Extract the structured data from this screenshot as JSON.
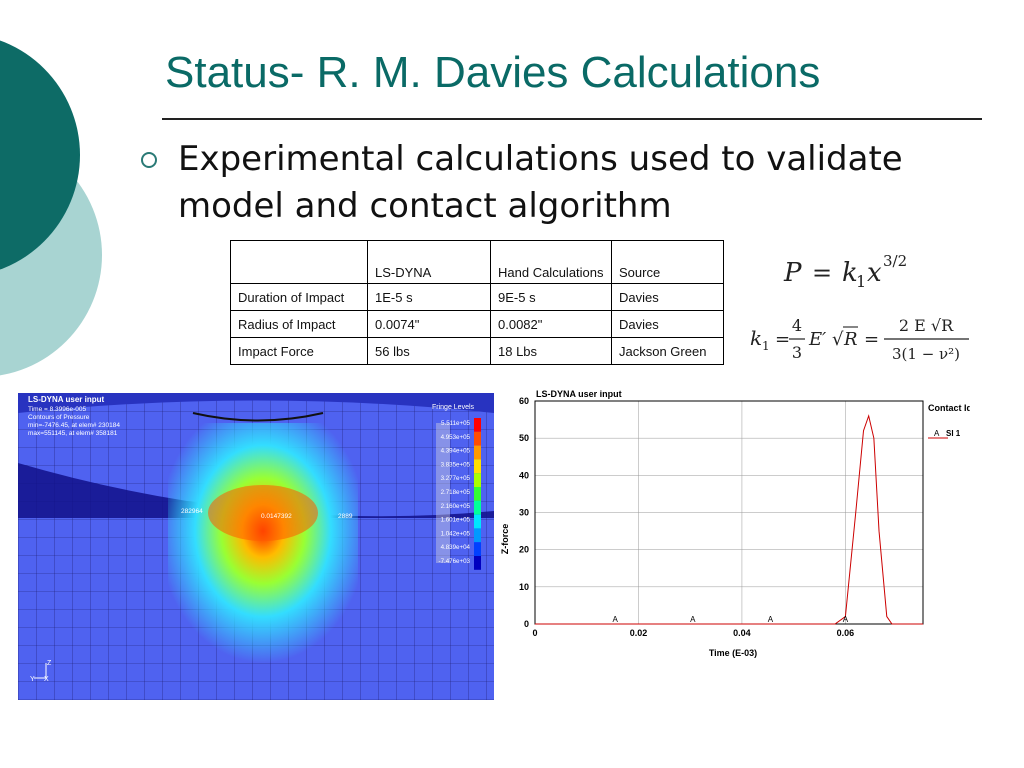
{
  "slide": {
    "title": "Status- R. M. Davies Calculations",
    "bullet": "Experimental calculations used to validate model and contact algorithm"
  },
  "table": {
    "headers": [
      "",
      "LS-DYNA",
      "Hand Calculations",
      "Source"
    ],
    "rows": [
      [
        "Duration of Impact",
        "1E-5 s",
        "9E-5 s",
        "Davies"
      ],
      [
        "Radius of Impact",
        "0.0074\"",
        "0.0082\"",
        "Davies"
      ],
      [
        "Impact Force",
        "56 lbs",
        "18 Lbs",
        "Jackson Green"
      ]
    ]
  },
  "formulas": {
    "force": {
      "P": "P",
      "eq": "=",
      "k": "k",
      "sub": "1",
      "x": "x",
      "exp": "3/2"
    },
    "k1": {
      "k": "k",
      "sub": "1",
      "eq1": "=",
      "frac1_num": "4",
      "frac1_den": "3",
      "e_prime": "E′",
      "root_sym": "√",
      "r": "R",
      "eq2": "=",
      "frac2_num": "2 E √R",
      "frac2_den": "3(1 − ν²)"
    }
  },
  "contour_plot": {
    "header": [
      "LS-DYNA user input",
      "Time = 8.3996e-005",
      "Contours of Pressure",
      "min=-7476.45, at elem# 230184",
      "max=551145, at elem# 358181"
    ],
    "legend_title": "Fringe Levels",
    "levels": [
      "5.511e+05",
      "4.953e+05",
      "4.394e+05",
      "3.835e+05",
      "3.277e+05",
      "2.718e+05",
      "2.160e+05",
      "1.601e+05",
      "1.042e+05",
      "4.839e+04",
      "-7.476e+03"
    ],
    "level_colors": [
      "#ff0000",
      "#ff4d00",
      "#ff9900",
      "#ffe000",
      "#aaff00",
      "#33ff33",
      "#00ff99",
      "#00e6ff",
      "#0099ff",
      "#0040ff",
      "#0000c0"
    ],
    "labels": {
      "left": "282964",
      "center": "0.0147392",
      "right": "2889"
    },
    "axes": {
      "z": "Z",
      "y": "Y",
      "x": "X"
    }
  },
  "chart_data": {
    "type": "line",
    "title": "LS-DYNA user input",
    "xlabel": "Time (E-03)",
    "ylabel": "Z-force",
    "xlim": [
      0,
      0.075
    ],
    "ylim": [
      0,
      60
    ],
    "x_ticks": [
      "0",
      "0.02",
      "0.04",
      "0.06"
    ],
    "y_ticks": [
      "0",
      "10",
      "20",
      "30",
      "40",
      "50",
      "60"
    ],
    "grid": true,
    "legend_title": "Contact Id",
    "legend_position": "top-right",
    "series": [
      {
        "name": "SI 1",
        "marker": "A",
        "color": "#cc0000",
        "x": [
          0,
          0.058,
          0.06,
          0.062,
          0.0635,
          0.0645,
          0.0655,
          0.0665,
          0.068,
          0.069,
          0.075
        ],
        "y": [
          0,
          0,
          2,
          30,
          52,
          56,
          50,
          25,
          2,
          0,
          0
        ]
      }
    ],
    "marker_x": [
      0.0155,
      0.0305,
      0.0455,
      0.06
    ]
  }
}
